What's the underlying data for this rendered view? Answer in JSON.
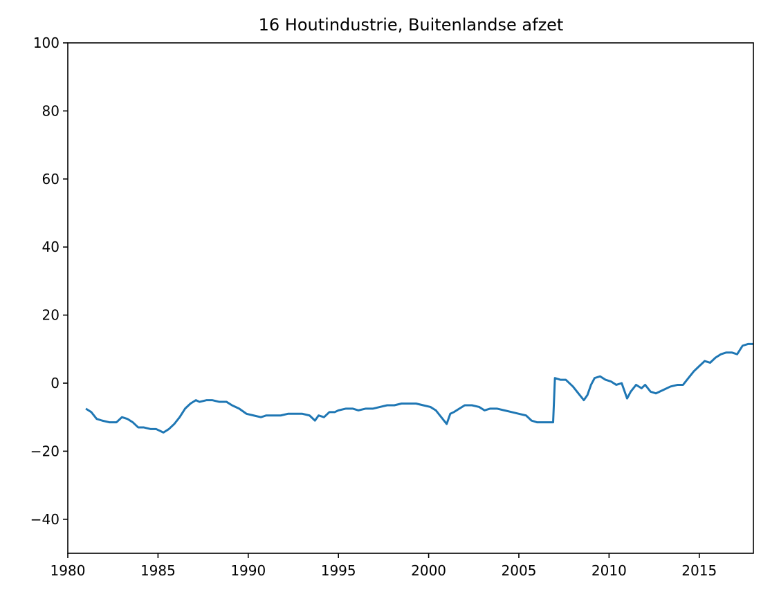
{
  "chart_data": {
    "type": "line",
    "title": "16 Houtindustrie, Buitenlandse afzet",
    "xlabel": "",
    "ylabel": "",
    "xlim": [
      1980,
      2018
    ],
    "ylim": [
      -50,
      100
    ],
    "grid": false,
    "x_ticks": [
      1980,
      1985,
      1990,
      1995,
      2000,
      2005,
      2010,
      2015
    ],
    "x_tick_labels": [
      "1980",
      "1985",
      "1990",
      "1995",
      "2000",
      "2005",
      "2010",
      "2015"
    ],
    "y_ticks": [
      -40,
      -20,
      0,
      20,
      40,
      60,
      80,
      100
    ],
    "y_tick_labels": [
      "−40",
      "−20",
      "0",
      "20",
      "40",
      "60",
      "80",
      "100"
    ],
    "series": [
      {
        "color": "#1f77b4",
        "x": [
          1981.0,
          1981.3,
          1981.6,
          1981.9,
          1982.3,
          1982.7,
          1983.0,
          1983.3,
          1983.6,
          1983.9,
          1984.2,
          1984.6,
          1984.9,
          1985.1,
          1985.3,
          1985.6,
          1985.9,
          1986.2,
          1986.5,
          1986.8,
          1987.1,
          1987.3,
          1987.7,
          1988.0,
          1988.4,
          1988.8,
          1989.1,
          1989.5,
          1989.9,
          1990.3,
          1990.7,
          1991.0,
          1991.4,
          1991.8,
          1992.2,
          1992.6,
          1993.0,
          1993.4,
          1993.7,
          1993.9,
          1994.2,
          1994.5,
          1994.8,
          1995.0,
          1995.4,
          1995.8,
          1996.1,
          1996.5,
          1996.9,
          1997.3,
          1997.7,
          1998.1,
          1998.5,
          1998.9,
          1999.3,
          1999.7,
          2000.1,
          2000.4,
          2000.7,
          2001.0,
          2001.2,
          2001.4,
          2001.7,
          2002.0,
          2002.4,
          2002.8,
          2003.1,
          2003.4,
          2003.8,
          2004.2,
          2004.6,
          2005.0,
          2005.4,
          2005.7,
          2006.0,
          2006.3,
          2006.6,
          2006.9,
          2007.0,
          2007.3,
          2007.6,
          2008.0,
          2008.3,
          2008.6,
          2008.8,
          2009.0,
          2009.2,
          2009.5,
          2009.8,
          2010.1,
          2010.4,
          2010.7,
          2011.0,
          2011.2,
          2011.5,
          2011.8,
          2012.0,
          2012.3,
          2012.6,
          2013.0,
          2013.4,
          2013.8,
          2014.1,
          2014.4,
          2014.7,
          2015.0,
          2015.3,
          2015.6,
          2015.9,
          2016.2,
          2016.5,
          2016.8,
          2017.1,
          2017.4,
          2017.7,
          2018.0
        ],
        "y": [
          -7.5,
          -8.5,
          -10.5,
          -11.0,
          -11.5,
          -11.5,
          -10.0,
          -10.5,
          -11.5,
          -13.0,
          -13.0,
          -13.5,
          -13.5,
          -14.0,
          -14.5,
          -13.5,
          -12.0,
          -10.0,
          -7.5,
          -6.0,
          -5.0,
          -5.5,
          -5.0,
          -5.0,
          -5.5,
          -5.5,
          -6.5,
          -7.5,
          -9.0,
          -9.5,
          -10.0,
          -9.5,
          -9.5,
          -9.5,
          -9.0,
          -9.0,
          -9.0,
          -9.5,
          -11.0,
          -9.5,
          -10.0,
          -8.5,
          -8.5,
          -8.0,
          -7.5,
          -7.5,
          -8.0,
          -7.5,
          -7.5,
          -7.0,
          -6.5,
          -6.5,
          -6.0,
          -6.0,
          -6.0,
          -6.5,
          -7.0,
          -8.0,
          -10.0,
          -12.0,
          -9.0,
          -8.5,
          -7.5,
          -6.5,
          -6.5,
          -7.0,
          -8.0,
          -7.5,
          -7.5,
          -8.0,
          -8.5,
          -9.0,
          -9.5,
          -11.0,
          -11.5,
          -11.5,
          -11.5,
          -11.5,
          1.5,
          1.0,
          1.0,
          -1.0,
          -3.0,
          -5.0,
          -3.5,
          -0.5,
          1.5,
          2.0,
          1.0,
          0.5,
          -0.5,
          0.0,
          -4.5,
          -2.5,
          -0.5,
          -1.5,
          -0.5,
          -2.5,
          -3.0,
          -2.0,
          -1.0,
          -0.5,
          -0.5,
          1.5,
          3.5,
          5.0,
          6.5,
          6.0,
          7.5,
          8.5,
          9.0,
          9.0,
          8.5,
          11.0,
          11.5,
          11.5
        ]
      }
    ]
  }
}
